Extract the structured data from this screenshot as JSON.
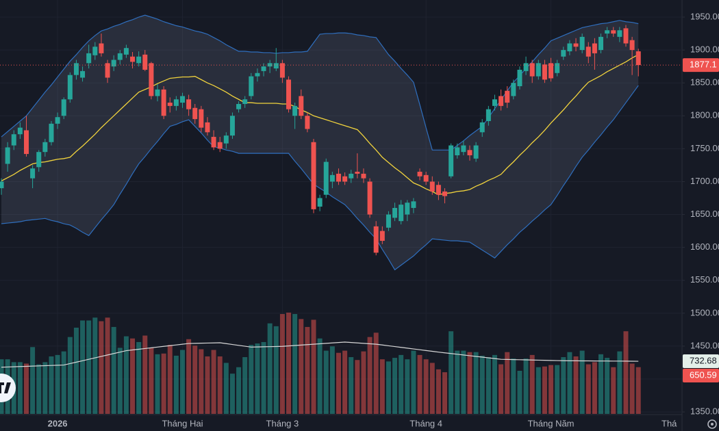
{
  "chart_data": {
    "type": "candlestick",
    "categories": [
      null,
      null,
      null,
      null,
      null,
      null,
      null,
      null,
      null,
      "2026",
      null,
      null,
      null,
      null,
      null,
      null,
      null,
      null,
      null,
      null,
      null,
      null,
      null,
      null,
      null,
      null,
      null,
      null,
      null,
      "Tháng Hai",
      null,
      null,
      null,
      null,
      null,
      null,
      null,
      null,
      null,
      null,
      null,
      null,
      null,
      null,
      null,
      "Tháng 3",
      null,
      null,
      null,
      null,
      null,
      null,
      null,
      null,
      null,
      null,
      null,
      null,
      null,
      null,
      null,
      null,
      null,
      null,
      null,
      null,
      null,
      null,
      "Tháng 4",
      null,
      null,
      null,
      null,
      null,
      null,
      null,
      null,
      null,
      null,
      null,
      null,
      null,
      null,
      null,
      null,
      null,
      null,
      null,
      "Tháng Năm",
      null,
      null,
      null,
      null,
      null,
      null,
      null,
      null,
      null,
      null,
      null,
      null,
      null,
      null
    ],
    "next_period_label": "Thá",
    "ylim": [
      1347,
      1976
    ],
    "yticks": [
      {
        "value": 1950,
        "label": "1950.00"
      },
      {
        "value": 1900,
        "label": "1900.00"
      },
      {
        "value": 1850,
        "label": "1850.00"
      },
      {
        "value": 1800,
        "label": "1800.00"
      },
      {
        "value": 1750,
        "label": "1750.00"
      },
      {
        "value": 1700,
        "label": "1700.00"
      },
      {
        "value": 1650,
        "label": "1650.00"
      },
      {
        "value": 1600,
        "label": "1600.00"
      },
      {
        "value": 1550,
        "label": "1550.00"
      },
      {
        "value": 1500,
        "label": "1500.00"
      },
      {
        "value": 1450,
        "label": "1450.00"
      },
      {
        "value": 1400,
        "label": "1400.00"
      },
      {
        "value": 1350,
        "label": "1350.00"
      }
    ],
    "grid": true,
    "up_color": "#26a69a",
    "down_color": "#ef5350",
    "band_color": "#2f6fbf",
    "ma_color": "#f2d43d",
    "volume_ma_color": "#d8d8d8",
    "open": [
      1690,
      1727,
      1755,
      1772,
      1778,
      1705,
      1722,
      1745,
      1760,
      1788,
      1800,
      1825,
      1862,
      1858,
      1880,
      1892,
      1910,
      1880,
      1875,
      1885,
      1893,
      1890,
      1880,
      1893,
      1880,
      1830,
      1840,
      1820,
      1815,
      1820,
      1825,
      1812,
      1810,
      1790,
      1768,
      1760,
      1758,
      1770,
      1810,
      1818,
      1830,
      1860,
      1868,
      1875,
      1872,
      1880,
      1855,
      1800,
      1830,
      1800,
      1760,
      1662,
      1680,
      1700,
      1712,
      1708,
      1705,
      1715,
      1712,
      1700,
      1632,
      1625,
      1630,
      1645,
      1640,
      1650,
      1660,
      1715,
      1710,
      1700,
      1695,
      1685,
      1708,
      1740,
      1745,
      1748,
      1735,
      1775,
      1792,
      1815,
      1830,
      1838,
      1830,
      1845,
      1868,
      1880,
      1860,
      1878,
      1880,
      1865,
      1890,
      1898,
      1910,
      1900,
      1905,
      1910,
      1900,
      1925,
      1930,
      1920,
      1933,
      1915,
      1898
    ],
    "high": [
      1705,
      1760,
      1778,
      1790,
      1800,
      1725,
      1748,
      1765,
      1792,
      1805,
      1828,
      1866,
      1885,
      1875,
      1908,
      1912,
      1925,
      1885,
      1892,
      1900,
      1908,
      1897,
      1898,
      1900,
      1882,
      1848,
      1845,
      1828,
      1830,
      1835,
      1832,
      1818,
      1815,
      1798,
      1778,
      1768,
      1775,
      1805,
      1822,
      1830,
      1865,
      1872,
      1880,
      1885,
      1903,
      1885,
      1860,
      1820,
      1840,
      1805,
      1765,
      1680,
      1735,
      1715,
      1720,
      1714,
      1718,
      1743,
      1720,
      1705,
      1640,
      1632,
      1655,
      1668,
      1672,
      1672,
      1675,
      1720,
      1715,
      1708,
      1700,
      1690,
      1758,
      1758,
      1762,
      1755,
      1760,
      1795,
      1815,
      1832,
      1840,
      1845,
      1855,
      1875,
      1890,
      1885,
      1885,
      1885,
      1888,
      1885,
      1905,
      1915,
      1918,
      1925,
      1912,
      1918,
      1925,
      1935,
      1935,
      1935,
      1938,
      1920,
      1902
    ],
    "low": [
      1680,
      1715,
      1748,
      1765,
      1738,
      1690,
      1715,
      1738,
      1755,
      1780,
      1795,
      1820,
      1855,
      1852,
      1872,
      1885,
      1890,
      1850,
      1868,
      1878,
      1888,
      1872,
      1875,
      1868,
      1825,
      1822,
      1795,
      1805,
      1808,
      1812,
      1800,
      1788,
      1775,
      1770,
      1748,
      1745,
      1750,
      1765,
      1805,
      1812,
      1825,
      1852,
      1860,
      1865,
      1868,
      1850,
      1805,
      1780,
      1795,
      1775,
      1652,
      1655,
      1675,
      1690,
      1695,
      1695,
      1698,
      1705,
      1698,
      1645,
      1588,
      1605,
      1625,
      1640,
      1635,
      1640,
      1652,
      1702,
      1695,
      1680,
      1672,
      1667,
      1705,
      1735,
      1740,
      1732,
      1730,
      1768,
      1785,
      1808,
      1808,
      1812,
      1825,
      1840,
      1862,
      1850,
      1855,
      1850,
      1852,
      1860,
      1885,
      1892,
      1898,
      1895,
      1880,
      1870,
      1895,
      1918,
      1920,
      1912,
      1905,
      1862,
      1860
    ],
    "close": [
      1700,
      1752,
      1772,
      1782,
      1742,
      1720,
      1745,
      1760,
      1788,
      1798,
      1825,
      1862,
      1880,
      1868,
      1895,
      1905,
      1895,
      1858,
      1885,
      1895,
      1903,
      1882,
      1890,
      1870,
      1830,
      1840,
      1800,
      1815,
      1825,
      1830,
      1810,
      1795,
      1782,
      1775,
      1752,
      1750,
      1770,
      1800,
      1818,
      1825,
      1860,
      1865,
      1875,
      1880,
      1880,
      1858,
      1810,
      1815,
      1800,
      1780,
      1658,
      1675,
      1730,
      1710,
      1700,
      1700,
      1712,
      1712,
      1705,
      1650,
      1592,
      1610,
      1650,
      1660,
      1665,
      1668,
      1670,
      1708,
      1700,
      1685,
      1680,
      1678,
      1755,
      1752,
      1755,
      1740,
      1755,
      1790,
      1810,
      1825,
      1815,
      1820,
      1850,
      1870,
      1880,
      1860,
      1880,
      1855,
      1857,
      1880,
      1900,
      1910,
      1905,
      1920,
      1890,
      1895,
      1920,
      1930,
      1925,
      1930,
      1910,
      1900,
      1877.1
    ],
    "bands": {
      "upper": [
        1768,
        1776,
        1784,
        1792,
        1800,
        1812,
        1824,
        1836,
        1847,
        1859,
        1871,
        1883,
        1893,
        1904,
        1914,
        1922,
        1929,
        1932,
        1936,
        1939,
        1943,
        1946,
        1950,
        1953,
        1950,
        1947,
        1943,
        1940,
        1937,
        1935,
        1932,
        1929,
        1927,
        1924,
        1919,
        1914,
        1908,
        1903,
        1898,
        1898,
        1897,
        1897,
        1896,
        1896,
        1895,
        1896,
        1896,
        1897,
        1897,
        1898,
        1911,
        1924,
        1925,
        1925,
        1926,
        1926,
        1925,
        1923,
        1922,
        1920,
        1919,
        1906,
        1893,
        1883,
        1872,
        1862,
        1851,
        1817,
        1782,
        1748,
        1748,
        1748,
        1748,
        1755,
        1762,
        1770,
        1777,
        1784,
        1797,
        1811,
        1824,
        1838,
        1851,
        1861,
        1872,
        1882,
        1893,
        1903,
        1914,
        1918,
        1922,
        1926,
        1930,
        1934,
        1936,
        1938,
        1940,
        1941,
        1943,
        1945,
        1943,
        1942,
        1940
      ],
      "middle": [
        1701,
        1706,
        1711,
        1717,
        1722,
        1727,
        1729,
        1730,
        1732,
        1734,
        1735,
        1737,
        1746,
        1754,
        1763,
        1772,
        1782,
        1791,
        1800,
        1809,
        1818,
        1827,
        1836,
        1840,
        1844,
        1849,
        1853,
        1857,
        1858,
        1859,
        1859,
        1860,
        1855,
        1850,
        1846,
        1841,
        1836,
        1830,
        1825,
        1820,
        1820,
        1819,
        1819,
        1819,
        1819,
        1818,
        1818,
        1814,
        1809,
        1805,
        1800,
        1797,
        1794,
        1791,
        1788,
        1785,
        1782,
        1779,
        1769,
        1758,
        1748,
        1737,
        1729,
        1721,
        1714,
        1706,
        1698,
        1694,
        1689,
        1685,
        1680,
        1682,
        1683,
        1685,
        1686,
        1688,
        1693,
        1697,
        1702,
        1706,
        1711,
        1721,
        1730,
        1740,
        1749,
        1759,
        1768,
        1778,
        1789,
        1799,
        1809,
        1820,
        1830,
        1841,
        1851,
        1856,
        1861,
        1867,
        1872,
        1877,
        1882,
        1888,
        1893
      ],
      "lower": [
        1636,
        1637,
        1638,
        1639,
        1641,
        1642,
        1643,
        1644,
        1641,
        1639,
        1636,
        1634,
        1629,
        1623,
        1618,
        1630,
        1642,
        1653,
        1665,
        1681,
        1696,
        1712,
        1727,
        1738,
        1750,
        1761,
        1773,
        1784,
        1787,
        1791,
        1794,
        1784,
        1774,
        1763,
        1753,
        1751,
        1748,
        1746,
        1743,
        1743,
        1743,
        1743,
        1743,
        1743,
        1743,
        1743,
        1743,
        1731,
        1720,
        1708,
        1696,
        1690,
        1684,
        1677,
        1671,
        1665,
        1655,
        1644,
        1634,
        1623,
        1613,
        1597,
        1582,
        1566,
        1573,
        1580,
        1587,
        1596,
        1604,
        1613,
        1612,
        1611,
        1610,
        1610,
        1609,
        1608,
        1602,
        1596,
        1590,
        1584,
        1594,
        1604,
        1613,
        1623,
        1631,
        1640,
        1648,
        1657,
        1665,
        1679,
        1694,
        1708,
        1723,
        1737,
        1748,
        1760,
        1771,
        1783,
        1794,
        1807,
        1820,
        1833,
        1846
      ]
    },
    "volume": [
      760,
      760,
      720,
      720,
      700,
      930,
      690,
      720,
      800,
      820,
      870,
      1070,
      1200,
      1300,
      1300,
      1340,
      1290,
      1340,
      1210,
      920,
      1080,
      1050,
      1000,
      1090,
      920,
      830,
      840,
      960,
      810,
      890,
      1040,
      950,
      900,
      800,
      890,
      800,
      710,
      560,
      650,
      790,
      960,
      980,
      1000,
      1260,
      1220,
      1390,
      1410,
      1390,
      1320,
      1210,
      1310,
      1050,
      880,
      940,
      850,
      880,
      790,
      750,
      870,
      1070,
      1130,
      760,
      730,
      780,
      820,
      760,
      880,
      820,
      760,
      710,
      620,
      580,
      1150,
      880,
      880,
      860,
      860,
      810,
      790,
      820,
      690,
      860,
      770,
      600,
      770,
      820,
      650,
      660,
      680,
      680,
      790,
      860,
      800,
      880,
      690,
      720,
      830,
      780,
      650,
      870,
      1150,
      700,
      650.59
    ],
    "volume_ma": [
      650,
      653,
      656,
      659,
      662,
      665,
      668,
      671,
      674,
      677,
      680,
      700,
      720,
      740,
      760,
      780,
      800,
      820,
      840,
      860,
      880,
      890,
      900,
      910,
      920,
      930,
      940,
      950,
      960,
      970,
      980,
      982,
      984,
      986,
      988,
      990,
      978,
      966,
      954,
      942,
      930,
      932,
      934,
      936,
      938,
      940,
      946,
      952,
      958,
      964,
      970,
      976,
      982,
      988,
      994,
      1000,
      994,
      988,
      982,
      976,
      970,
      959,
      948,
      937,
      926,
      915,
      904,
      893,
      882,
      871,
      860,
      850,
      840,
      830,
      820,
      810,
      800,
      790,
      780,
      770,
      760,
      758,
      756,
      754,
      752,
      750,
      748,
      746,
      744,
      742,
      740,
      739,
      739,
      738,
      738,
      737,
      736,
      736,
      735,
      735,
      734,
      733,
      732.68
    ],
    "volume_ylim": [
      0,
      5760
    ]
  }
}
